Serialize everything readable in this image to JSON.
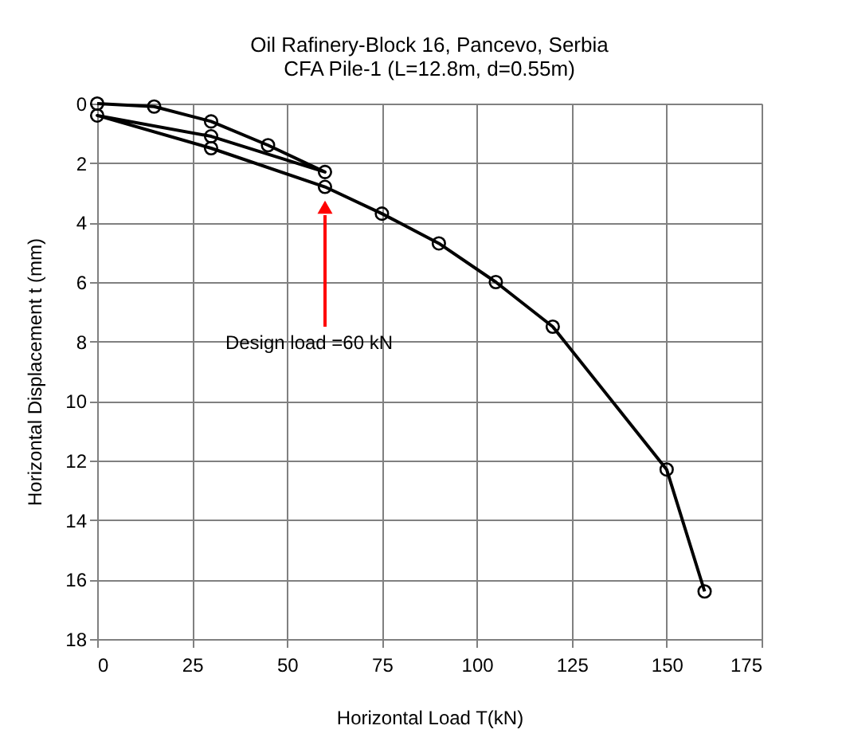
{
  "chart_data": {
    "type": "line",
    "title": "Oil Rafinery-Block 16, Pancevo, Serbia",
    "subtitle": "CFA Pile-1 (L=12.8m, d=0.55m)",
    "xlabel": "Horizontal Load T(kN)",
    "ylabel": "Horizontal Displacement  t (mm)",
    "series": [
      {
        "color": "#000000",
        "x": [
          0,
          15,
          30,
          45,
          60,
          30,
          0,
          30,
          60,
          75,
          90,
          105,
          120,
          150,
          160
        ],
        "values": [
          0,
          0.1,
          0.6,
          1.4,
          2.3,
          1.1,
          0.4,
          1.5,
          2.8,
          3.7,
          4.7,
          6.0,
          7.5,
          12.3,
          16.4
        ]
      }
    ],
    "xlim": [
      0,
      175
    ],
    "xticks": [
      0,
      25,
      50,
      75,
      100,
      125,
      150,
      175
    ],
    "ylim": [
      18,
      0
    ],
    "yticks": [
      0,
      2,
      4,
      6,
      8,
      10,
      12,
      14,
      16,
      18
    ],
    "grid": true,
    "marker": "circle",
    "line_style": "solid",
    "annotations": [
      "Design load =60 kN"
    ]
  }
}
